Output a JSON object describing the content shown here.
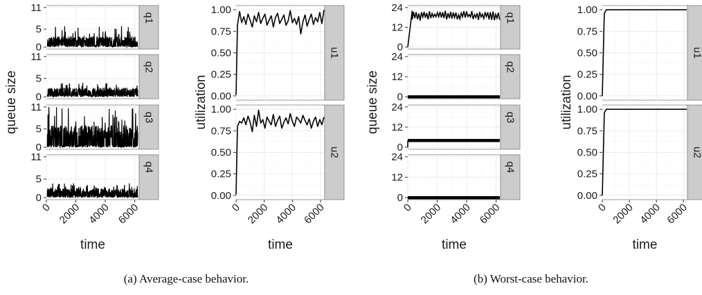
{
  "captions": {
    "a": "(a) Average-case behavior.",
    "b": "(b) Worst-case behavior."
  },
  "colors": {
    "panel": "#ffffff",
    "grid_major": "#ebebeb",
    "grid_minor": "#f5f5f5",
    "strip": "#cccccc",
    "line": "#000000",
    "border": "#7f7f7f"
  },
  "chart_data": [
    {
      "type": "line",
      "title": "",
      "xlabel": "time",
      "ylabel": "queue size",
      "xlim": [
        0,
        6300
      ],
      "ylim": [
        0,
        11
      ],
      "xticks": [
        "0",
        "2000",
        "4000",
        "6000"
      ],
      "yticks": [
        "0",
        "5",
        "11"
      ],
      "grid": true,
      "facets": "stacked, strip on right",
      "series": [
        {
          "name": "q1",
          "pattern": "dense-noise",
          "low": 0,
          "typical_high": 3,
          "peak": 6
        },
        {
          "name": "q2",
          "pattern": "dense-noise",
          "low": 0,
          "typical_high": 2.5,
          "peak": 4
        },
        {
          "name": "q3",
          "pattern": "dense-noise",
          "low": 0,
          "typical_high": 6,
          "peak": 11
        },
        {
          "name": "q4",
          "pattern": "dense-noise",
          "low": 0,
          "typical_high": 2.5,
          "peak": 4
        }
      ]
    },
    {
      "type": "line",
      "title": "",
      "xlabel": "time",
      "ylabel": "utilization",
      "xlim": [
        0,
        6300
      ],
      "ylim": [
        0,
        1
      ],
      "xticks": [
        "0",
        "2000",
        "4000",
        "6000"
      ],
      "yticks": [
        "0.00",
        "0.25",
        "0.50",
        "0.75",
        "1.00"
      ],
      "grid": true,
      "facets": "stacked, strip on right",
      "series": [
        {
          "name": "u1",
          "x": [
            0,
            100,
            250,
            400,
            550,
            700,
            850,
            1000,
            1150,
            1300,
            1450,
            1600,
            1750,
            1900,
            2050,
            2200,
            2350,
            2500,
            2650,
            2800,
            2950,
            3100,
            3250,
            3400,
            3550,
            3700,
            3850,
            4000,
            4150,
            4300,
            4450,
            4600,
            4750,
            4900,
            5050,
            5200,
            5350,
            5500,
            5650,
            5800,
            5950,
            6100,
            6250
          ],
          "y": [
            0.01,
            0.82,
            0.98,
            0.85,
            0.92,
            0.83,
            0.95,
            0.88,
            0.8,
            0.93,
            0.86,
            0.97,
            0.84,
            0.9,
            0.95,
            0.82,
            0.88,
            0.93,
            0.8,
            0.91,
            0.96,
            0.84,
            0.89,
            0.94,
            0.82,
            0.87,
            0.99,
            0.85,
            0.9,
            0.83,
            0.92,
            0.72,
            0.86,
            0.94,
            0.81,
            0.89,
            0.95,
            0.83,
            0.91,
            0.86,
            0.97,
            0.84,
            1.0
          ]
        },
        {
          "name": "u2",
          "x": [
            0,
            100,
            250,
            400,
            550,
            700,
            850,
            1000,
            1150,
            1300,
            1450,
            1600,
            1750,
            1900,
            2050,
            2200,
            2350,
            2500,
            2650,
            2800,
            2950,
            3100,
            3250,
            3400,
            3550,
            3700,
            3850,
            4000,
            4150,
            4300,
            4450,
            4600,
            4750,
            4900,
            5050,
            5200,
            5350,
            5500,
            5650,
            5800,
            5950,
            6100,
            6250
          ],
          "y": [
            0.01,
            0.8,
            0.86,
            0.84,
            0.9,
            0.82,
            0.92,
            0.85,
            0.74,
            0.93,
            0.8,
            0.99,
            0.84,
            0.88,
            0.78,
            0.91,
            0.86,
            0.82,
            0.94,
            0.8,
            0.87,
            0.92,
            0.78,
            0.85,
            0.9,
            0.83,
            0.95,
            0.86,
            0.8,
            0.91,
            0.88,
            0.84,
            0.93,
            0.87,
            0.82,
            0.89,
            0.78,
            0.86,
            0.91,
            0.8,
            0.88,
            0.82,
            0.91
          ]
        }
      ]
    },
    {
      "type": "line",
      "title": "",
      "xlabel": "time",
      "ylabel": "queue size",
      "xlim": [
        0,
        6300
      ],
      "ylim": [
        0,
        24
      ],
      "xticks": [
        "0",
        "2000",
        "4000",
        "6000"
      ],
      "yticks": [
        "0",
        "12",
        "24"
      ],
      "grid": true,
      "facets": "stacked, strip on right",
      "series": [
        {
          "name": "q1",
          "pattern": "ramp-then-oscillate",
          "ramp_end": 300,
          "low": 16,
          "high": 22
        },
        {
          "name": "q2",
          "pattern": "constant",
          "value": 0
        },
        {
          "name": "q3",
          "pattern": "constant",
          "value": 4
        },
        {
          "name": "q4",
          "pattern": "constant",
          "value": 0
        }
      ]
    },
    {
      "type": "line",
      "title": "",
      "xlabel": "time",
      "ylabel": "utilization",
      "xlim": [
        0,
        6300
      ],
      "ylim": [
        0,
        1
      ],
      "xticks": [
        "0",
        "2000",
        "4000",
        "6000"
      ],
      "yticks": [
        "0.00",
        "0.25",
        "0.50",
        "0.75",
        "1.00"
      ],
      "grid": true,
      "facets": "stacked, strip on right",
      "series": [
        {
          "name": "u1",
          "x": [
            0,
            150,
            300,
            6250
          ],
          "y": [
            0.0,
            0.96,
            1.0,
            1.0
          ]
        },
        {
          "name": "u2",
          "x": [
            0,
            150,
            300,
            6250
          ],
          "y": [
            0.0,
            0.96,
            1.0,
            1.0
          ]
        }
      ]
    }
  ]
}
